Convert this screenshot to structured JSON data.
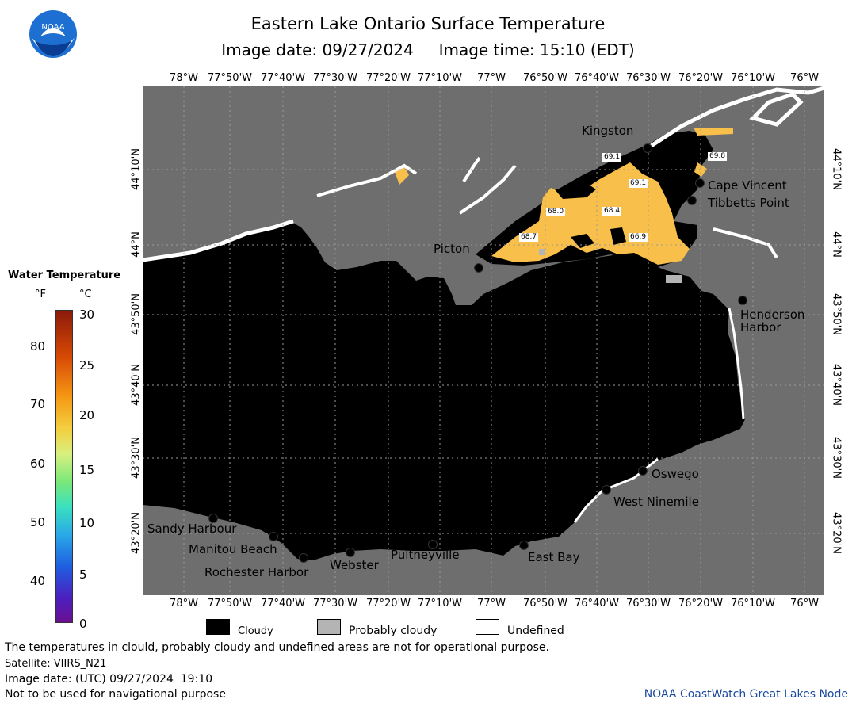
{
  "header": {
    "title": "Eastern Lake Ontario Surface Temperature",
    "image_date": "Image date: 09/27/2024",
    "image_time": "Image time: 15:10 (EDT)"
  },
  "logo": {
    "text": "NOAA"
  },
  "lon_labels": [
    "78°W",
    "77°50'W",
    "77°40'W",
    "77°30'W",
    "77°20'W",
    "77°10'W",
    "77°W",
    "76°50'W",
    "76°40'W",
    "76°30'W",
    "76°20'W",
    "76°10'W",
    "76°W"
  ],
  "lon_labels_top_last": "76°W",
  "lat_labels": [
    "44°10'N",
    "44°N",
    "43°50'N",
    "43°40'N",
    "43°30'N",
    "43°20'N"
  ],
  "places": [
    {
      "name": "Kingston"
    },
    {
      "name": "Cape Vincent"
    },
    {
      "name": "Tibbetts Point"
    },
    {
      "name": "Picton"
    },
    {
      "name": "Henderson"
    },
    {
      "name": "Harbor"
    },
    {
      "name": "Oswego"
    },
    {
      "name": "West Ninemile"
    },
    {
      "name": "Sandy Harbour"
    },
    {
      "name": "Manitou Beach"
    },
    {
      "name": "Rochester Harbor"
    },
    {
      "name": "Webster"
    },
    {
      "name": "Pultneyville"
    },
    {
      "name": "East Bay"
    }
  ],
  "temperature_readings": [
    "69.1",
    "69.8",
    "69.1",
    "68.0",
    "68.4",
    "68.7",
    "66.9"
  ],
  "legend": {
    "title": "Water Temperature",
    "unit_f": "°F",
    "unit_c": "°C",
    "f_ticks": [
      "80",
      "70",
      "60",
      "50",
      "40"
    ],
    "c_ticks": [
      "30",
      "25",
      "20",
      "15",
      "10",
      "5",
      "0"
    ],
    "colors": {
      "land": "#6e6e6e",
      "cloudy": "#000000",
      "probably_cloudy": "#b4b4b4",
      "undefined": "#ffffff",
      "warm_water": "#f8bf4a"
    }
  },
  "key": {
    "cloudy": "Cloudy",
    "probably_cloudy": "Probably cloudy",
    "undefined": "Undefined"
  },
  "notes": {
    "warning": "The temperatures in clould, probably cloudy and undefined areas are not for operational purpose.",
    "satellite": "Satellite: VIIRS_N21",
    "utc_date": "Image date: (UTC) 09/27/2024  19:10",
    "navigation": "Not to be used for navigational purpose"
  },
  "credit": "NOAA CoastWatch Great Lakes Node"
}
